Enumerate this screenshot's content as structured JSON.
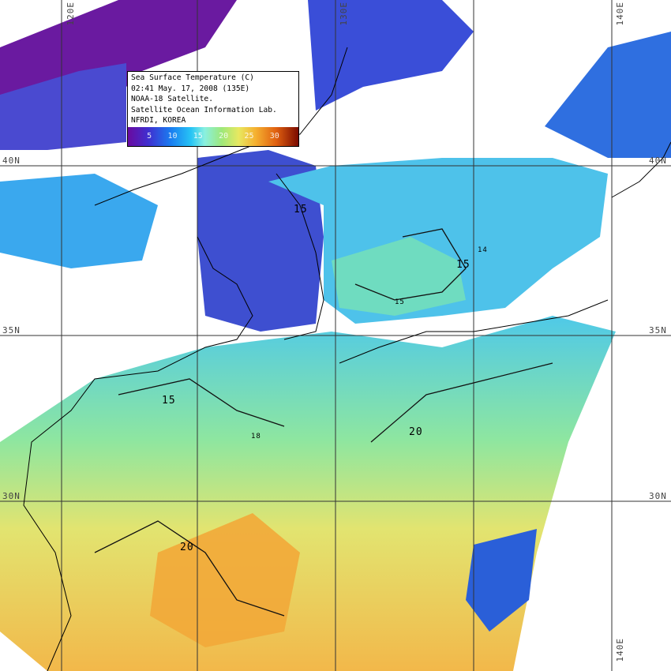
{
  "legend": {
    "lines": [
      "Sea Surface Temperature (C)",
      "02:41 May. 17, 2008 (135E)",
      "NOAA-18 Satellite.",
      "Satellite Ocean Information Lab.",
      "NFRDI, KOREA"
    ],
    "colorbar_ticks": [
      "5",
      "10",
      "15",
      "20",
      "25",
      "30"
    ],
    "colors": [
      "#6a0aa0",
      "#3f2fd0",
      "#1a7cf0",
      "#27c4f5",
      "#8af0e0",
      "#9ee87a",
      "#e8e860",
      "#f5b030",
      "#e06010",
      "#7a0a00"
    ]
  },
  "grid": {
    "longitude_labels": [
      "120E",
      "130E",
      "140E"
    ],
    "bottom_longitude_label": "140E",
    "latitude_labels": [
      "40N",
      "35N",
      "30N"
    ]
  },
  "contour_labels": [
    "15",
    "15",
    "15",
    "14",
    "15",
    "18",
    "20",
    "20"
  ]
}
